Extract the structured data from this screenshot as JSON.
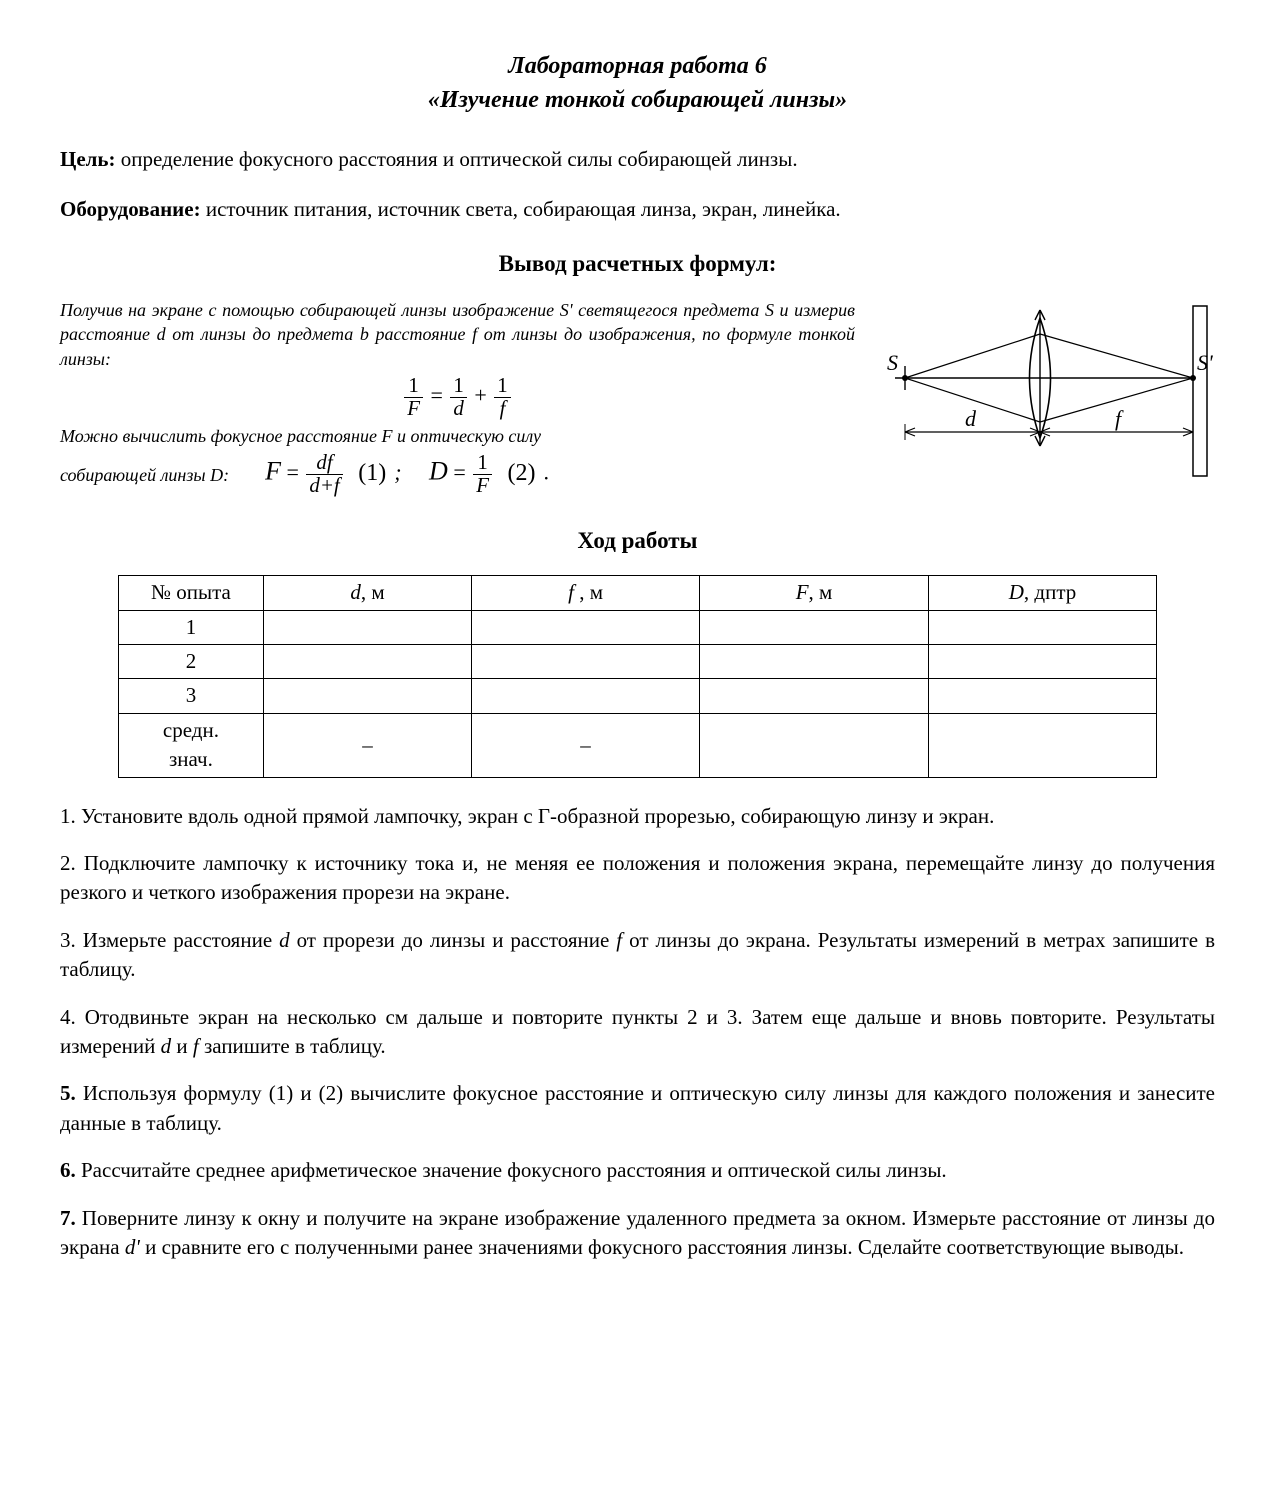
{
  "title": {
    "line1": "Лабораторная работа 6",
    "line2": "«Изучение тонкой собирающей линзы»"
  },
  "goal": {
    "label": "Цель:",
    "text": " определение фокусного расстояния и оптической силы собирающей линзы."
  },
  "equipment": {
    "label": "Оборудование:",
    "text": " источник питания, источник света, собирающая линза, экран, линейка."
  },
  "derivation_heading": "Вывод расчетных формул:",
  "intro1": "Получив на экране с помощью собирающей линзы изображение S' светящегося предмета S и измерив расстояние d от линзы до предмета b расстояние f от линзы до изображения, по формуле тонкой линзы:",
  "intro2": "Можно вычислить фокусное расстояние F и оптическую силу",
  "intro3_prefix": "собирающей линзы D:",
  "formula1": {
    "lhs_num": "1",
    "lhs_den": "F",
    "a_num": "1",
    "a_den": "d",
    "b_num": "1",
    "b_den": "f"
  },
  "formula2": {
    "F_lhs": "F",
    "F_num": "df",
    "F_den": "d+f",
    "F_no": "(1)",
    "D_lhs": "D",
    "D_num": "1",
    "D_den": "F",
    "D_no": "(2)",
    "sep": ";",
    "dot": "."
  },
  "diagram": {
    "S": "S",
    "Sp": "S'",
    "d": "d",
    "f": "f",
    "line_color": "#000000",
    "bg_color": "#ffffff"
  },
  "work_heading": "Ход работы",
  "table": {
    "columns": [
      "№ опыта",
      "d, м",
      "f , м",
      "F, м",
      "D, дптр"
    ],
    "col_italic_first": [
      false,
      true,
      true,
      true,
      true
    ],
    "rows": [
      {
        "n": "1",
        "cells": [
          "",
          "",
          "",
          ""
        ]
      },
      {
        "n": "2",
        "cells": [
          "",
          "",
          "",
          ""
        ]
      },
      {
        "n": "3",
        "cells": [
          "",
          "",
          "",
          ""
        ]
      }
    ],
    "avg_label_l1": "средн.",
    "avg_label_l2": "знач.",
    "dash": "–",
    "col_widths_pct": [
      14,
      20,
      22,
      22,
      22
    ]
  },
  "steps": [
    {
      "num": "1.",
      "bold": false,
      "text": " Установите вдоль одной прямой лампочку, экран с Г-образной прорезью, собирающую линзу и экран."
    },
    {
      "num": "2.",
      "bold": false,
      "text": " Подключите лампочку к источнику тока и, не меняя ее положения и положения экрана, перемещайте линзу до получения резкого и четкого изображения прорези на экране."
    },
    {
      "num": "3.",
      "bold": false,
      "html_parts": [
        {
          "t": " Измерьте расстояние "
        },
        {
          "it": "d"
        },
        {
          "t": " от прорези до линзы и расстояние "
        },
        {
          "it": "f"
        },
        {
          "t": " от линзы до экрана. Результаты измерений в метрах запишите в таблицу."
        }
      ]
    },
    {
      "num": "4.",
      "bold": false,
      "html_parts": [
        {
          "t": " Отодвиньте экран на несколько см дальше и повторите пункты 2 и 3. Затем еще дальше и вновь повторите. Результаты измерений "
        },
        {
          "it": "d"
        },
        {
          "t": " и "
        },
        {
          "it": "f"
        },
        {
          "t": " запишите в таблицу."
        }
      ]
    },
    {
      "num": "5.",
      "bold": true,
      "text": " Используя формулу (1) и (2) вычислите фокусное расстояние и оптическую силу линзы для каждого положения и занесите данные в таблицу."
    },
    {
      "num": "6.",
      "bold": true,
      "text": " Рассчитайте среднее арифметическое значение фокусного расстояния и оптической силы линзы."
    },
    {
      "num": "7.",
      "bold": true,
      "html_parts": [
        {
          "t": " Поверните линзу к окну и получите на экране изображение удаленного предмета за окном. Измерьте расстояние от линзы до экрана "
        },
        {
          "it": "d'"
        },
        {
          "t": " и сравните его с полученными ранее значениями фокусного расстояния линзы. Сделайте соответствующие выводы."
        }
      ]
    }
  ],
  "eq_sign": " = ",
  "plus_sign": " + "
}
